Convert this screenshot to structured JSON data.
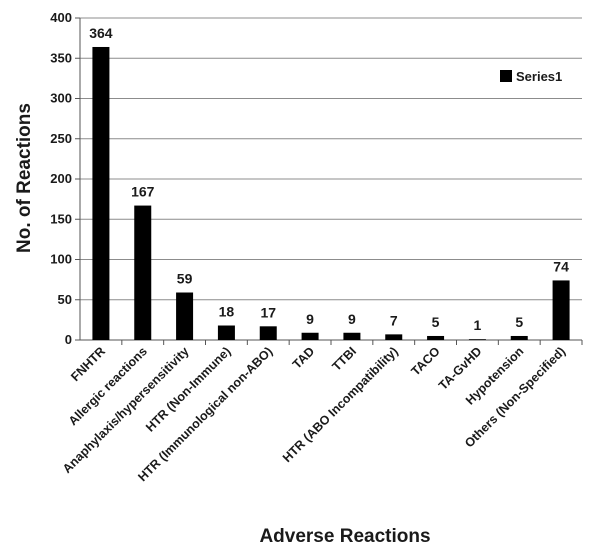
{
  "chart_data": {
    "type": "bar",
    "title": "",
    "xlabel": "Adverse Reactions",
    "ylabel": "No. of  Reactions",
    "ylim": [
      0,
      400
    ],
    "yticks": [
      0,
      50,
      100,
      150,
      200,
      250,
      300,
      350,
      400
    ],
    "grid": true,
    "legend_position": "top-right",
    "categories": [
      "FNHTR",
      "Allergic reactions",
      "Anaphylaxis/hypersensitivity",
      "HTR (Non-Immune)",
      "HTR (Immunological non-ABO)",
      "TAD",
      "TTBI",
      "HTR (ABO Incompatibility)",
      "TACO",
      "TA-GvHD",
      "Hypotension",
      "Others (Non-Specified)"
    ],
    "series": [
      {
        "name": "Series1",
        "color": "#000000",
        "values": [
          364,
          167,
          59,
          18,
          17,
          9,
          9,
          7,
          5,
          1,
          5,
          74
        ]
      }
    ]
  }
}
